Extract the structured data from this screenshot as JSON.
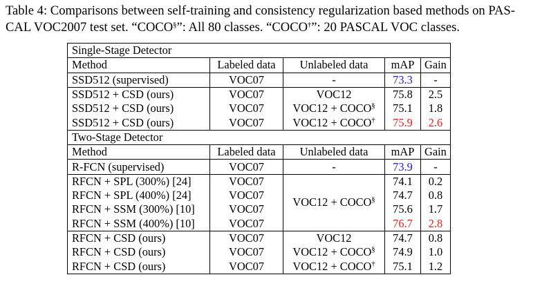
{
  "caption": {
    "line1_a": "Table 4: Comparisons between self-training and consistency regularization based methods on PAS-",
    "line2_a": "CAL VOC2007 test set. “COCO",
    "sup1": "§",
    "line2_b": "”: All 80 classes. “COCO",
    "sup2": "†",
    "line2_c": "”: 20 PASCAL VOC classes."
  },
  "columns": [
    "Method",
    "Labeled data",
    "Unlabeled data",
    "mAP",
    "Gain"
  ],
  "single_stage": {
    "title": "Single-Stage Detector",
    "rows": [
      {
        "method": "SSD512 (supervised)",
        "labeled": "VOC07",
        "unlabeled": "-",
        "unl_sup": "",
        "map": "73.3",
        "gain": "-"
      },
      {
        "method": "SSD512 + CSD (ours)",
        "labeled": "VOC07",
        "unlabeled": "VOC12",
        "unl_sup": "",
        "map": "75.8",
        "gain": "2.5"
      },
      {
        "method": "SSD512 + CSD (ours)",
        "labeled": "VOC07",
        "unlabeled": "VOC12 + COCO",
        "unl_sup": "§",
        "map": "75.1",
        "gain": "1.8"
      },
      {
        "method": "SSD512 + CSD (ours)",
        "labeled": "VOC07",
        "unlabeled": "VOC12 + COCO",
        "unl_sup": "†",
        "map": "75.9",
        "gain": "2.6"
      }
    ]
  },
  "two_stage": {
    "title": "Two-Stage Detector",
    "rows": [
      {
        "method": "R-FCN (supervised)",
        "labeled": "VOC07",
        "unlabeled": "-",
        "unl_sup": "",
        "map": "73.9",
        "gain": "-"
      },
      {
        "method": "RFCN + SPL (300%) [24]",
        "labeled": "VOC07",
        "map": "74.1",
        "gain": "0.2"
      },
      {
        "method": "RFCN + SPL (400%) [24]",
        "labeled": "VOC07",
        "map": "74.7",
        "gain": "0.8"
      },
      {
        "method": "RFCN + SSM (300%) [10]",
        "labeled": "VOC07",
        "map": "75.6",
        "gain": "1.7"
      },
      {
        "method": "RFCN + SSM (400%) [10]",
        "labeled": "VOC07",
        "map": "76.7",
        "gain": "2.8"
      },
      {
        "method": "RFCN + CSD (ours)",
        "labeled": "VOC07",
        "unlabeled": "VOC12",
        "unl_sup": "",
        "map": "74.7",
        "gain": "0.8"
      },
      {
        "method": "RFCN + CSD (ours)",
        "labeled": "VOC07",
        "unlabeled": "VOC12 + COCO",
        "unl_sup": "§",
        "map": "74.9",
        "gain": "1.0"
      },
      {
        "method": "RFCN + CSD (ours)",
        "labeled": "VOC07",
        "unlabeled": "VOC12 + COCO",
        "unl_sup": "†",
        "map": "75.1",
        "gain": "1.2"
      }
    ],
    "merged_unlabeled": "VOC12 + COCO",
    "merged_unlabeled_sup": "§"
  },
  "colors": {
    "best": "#ff1a1a",
    "baseline": "#1a1aff"
  }
}
